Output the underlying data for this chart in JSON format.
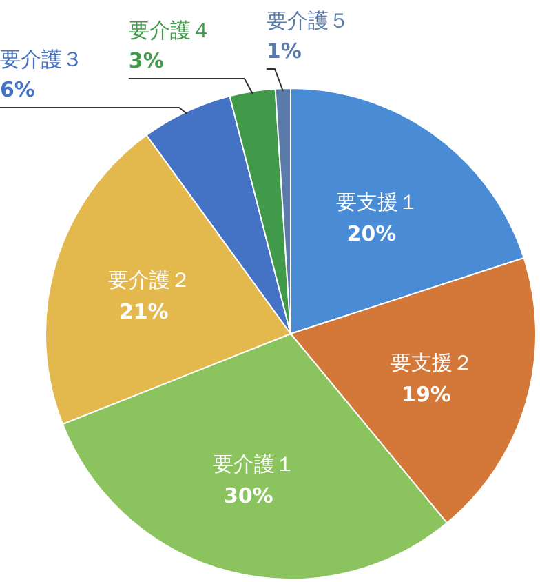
{
  "chart_data": {
    "type": "pie",
    "categories": [
      "要支援１",
      "要支援２",
      "要介護１",
      "要介護２",
      "要介護３",
      "要介護４",
      "要介護５"
    ],
    "values": [
      20,
      19,
      30,
      21,
      6,
      3,
      1
    ],
    "colors": [
      "#4a8bd6",
      "#d4783a",
      "#8bc45e",
      "#e3b94e",
      "#4472c4",
      "#41994a",
      "#5b7bab"
    ],
    "value_labels": [
      "20%",
      "19%",
      "30%",
      "21%",
      "6%",
      "3%",
      "1%"
    ]
  }
}
